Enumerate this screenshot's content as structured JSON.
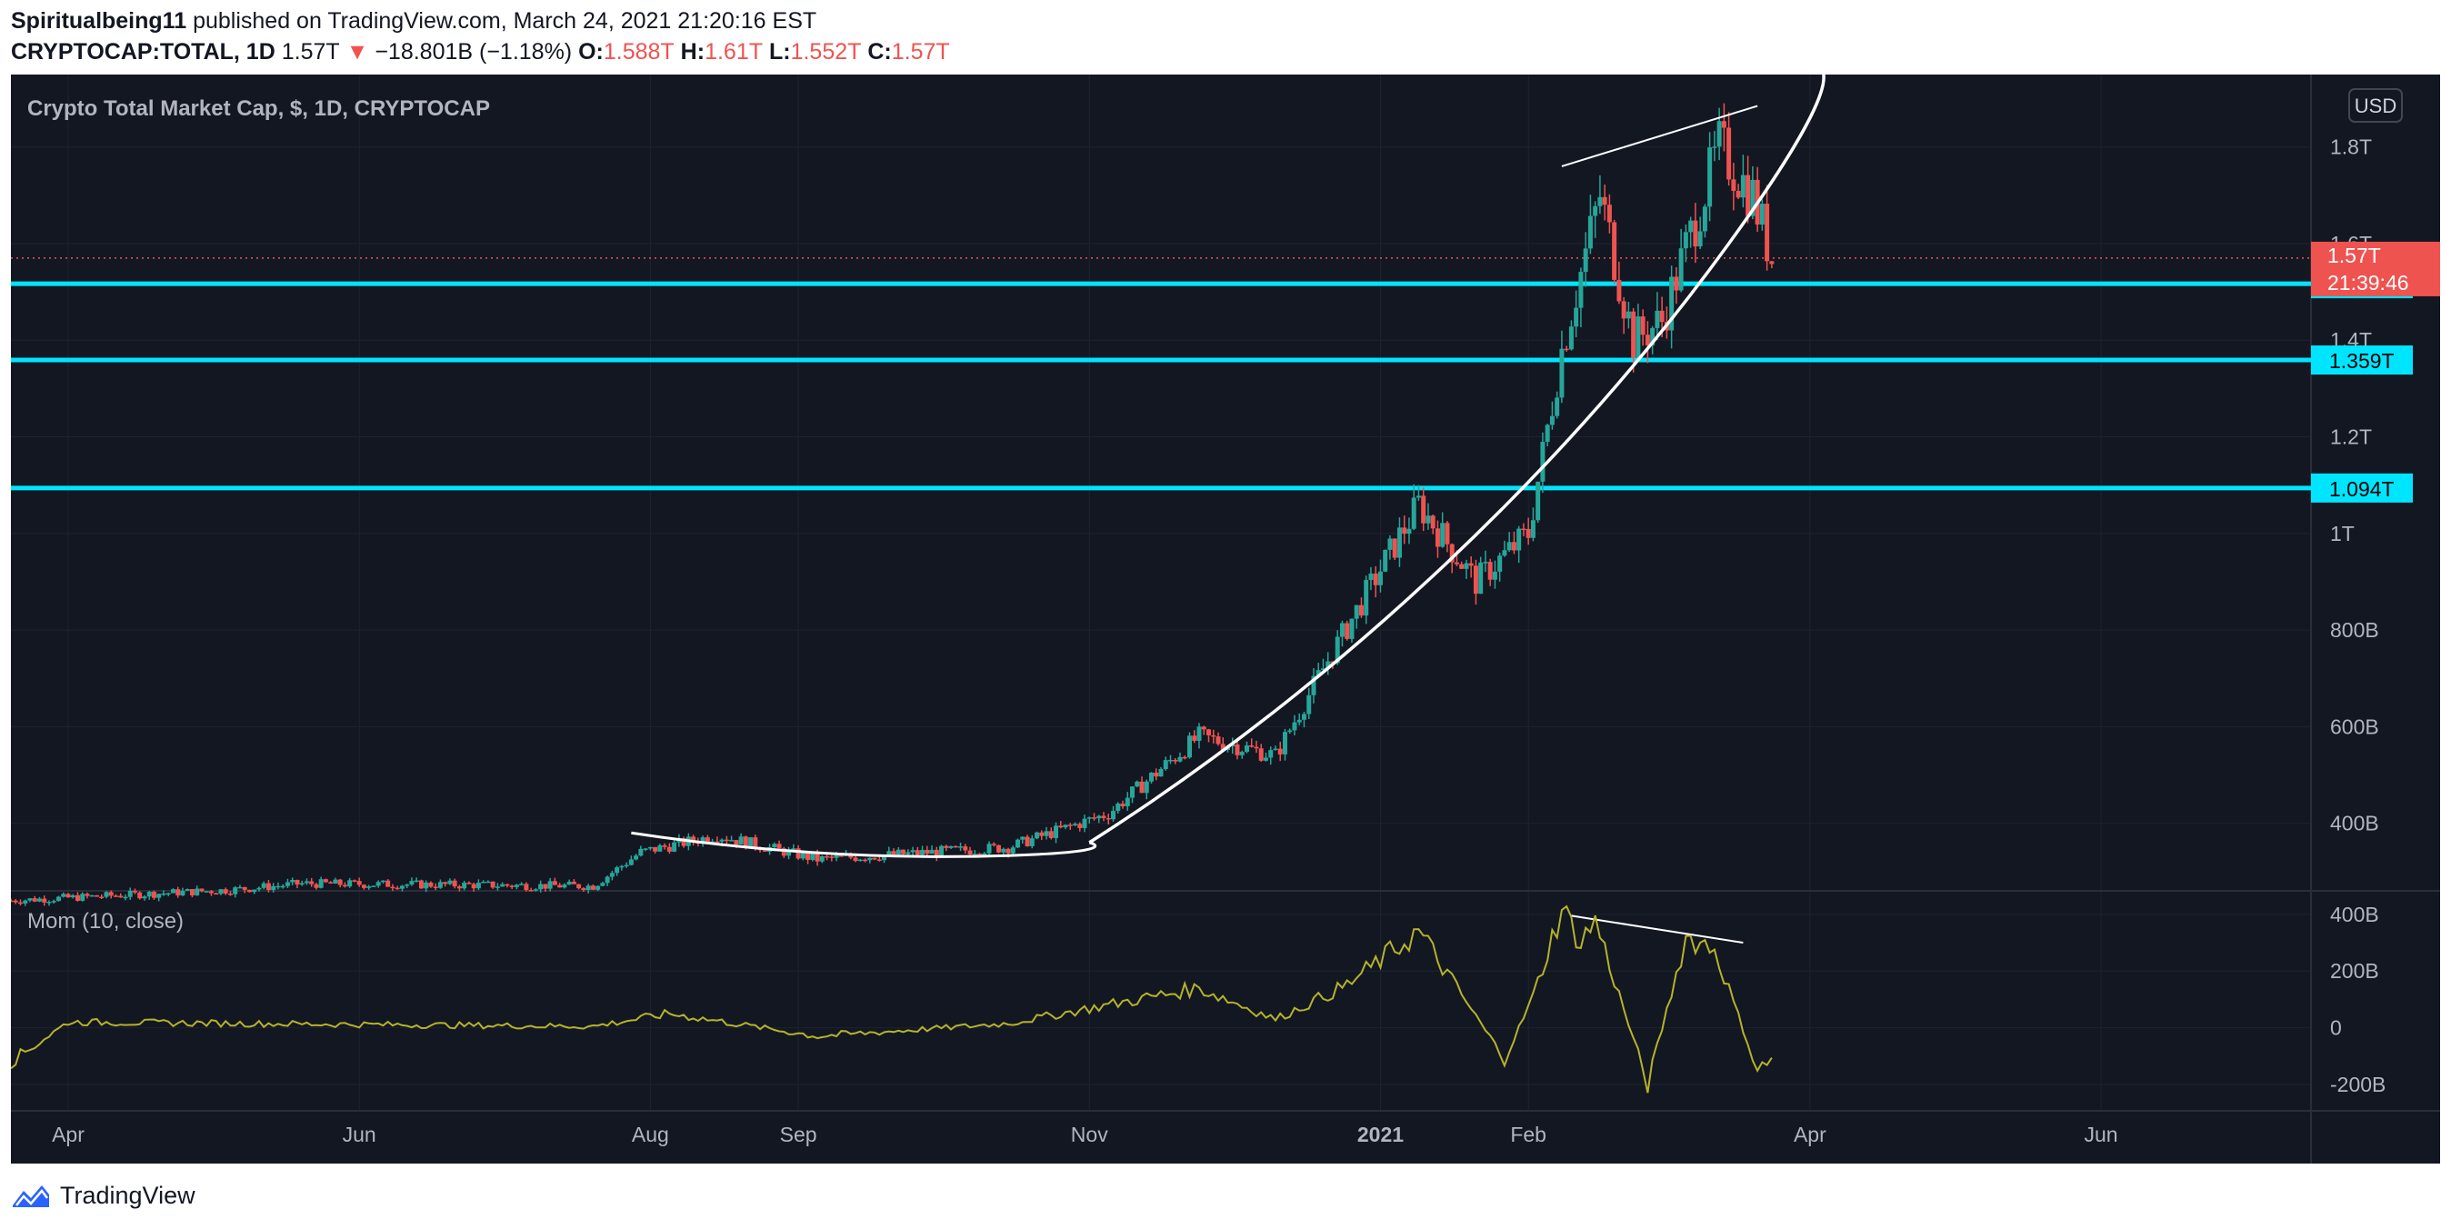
{
  "header": {
    "publisher": "Spiritualbeing11",
    "published_text": "published on TradingView.com, March 24, 2021 21:20:16 EST",
    "symbol": "CRYPTOCAP:TOTAL, 1D",
    "last": "1.57T",
    "change_arrow": "▼",
    "change": "−18.801B (−1.18%)",
    "o_label": "O:",
    "o_value": "1.588T",
    "h_label": "H:",
    "h_value": "1.61T",
    "l_label": "L:",
    "l_value": "1.552T",
    "c_label": "C:",
    "c_value": "1.57T"
  },
  "chart": {
    "series_title": "Crypto Total Market Cap, $, 1D, CRYPTOCAP",
    "currency_button": "USD",
    "indicator_title": "Mom (10, close)",
    "price_badge": "1.57T",
    "countdown": "21:39:46",
    "footer_brand": "TradingView"
  },
  "colors": {
    "background": "#131722",
    "grid": "#1f2330",
    "up": "#26a69a",
    "down": "#ef5350",
    "level_line": "#00e5ff",
    "momentum": "#b5b32a",
    "text": "#b2b5be",
    "trendline": "#ffffff"
  },
  "chart_data": [
    {
      "type": "candlestick",
      "title": "Crypto Total Market Cap, $, 1D, CRYPTOCAP",
      "x_ticks": [
        "Apr",
        "Jun",
        "Aug",
        "Sep",
        "Nov",
        "2021",
        "Feb",
        "Apr",
        "Jun"
      ],
      "y_ticks": [
        "400B",
        "600B",
        "800B",
        "1T",
        "1.2T",
        "1.4T",
        "1.6T",
        "1.8T"
      ],
      "y_tick_values": [
        400,
        600,
        800,
        1000,
        1200,
        1400,
        1600,
        1800
      ],
      "unit": "B",
      "ylim": [
        260,
        1950
      ],
      "x_range": [
        "2020-03-20",
        "2021-07-15"
      ],
      "scale": "linear",
      "horizontal_levels": [
        {
          "label": "1.517T",
          "value": 1517
        },
        {
          "label": "1.359T",
          "value": 1359
        },
        {
          "label": "1.094T",
          "value": 1094
        }
      ],
      "last_price": {
        "label": "1.57T",
        "value": 1570
      },
      "anchor_points": [
        {
          "date": "2020-03-20",
          "close": 240
        },
        {
          "date": "2020-05-05",
          "close": 262
        },
        {
          "date": "2020-05-20",
          "close": 275
        },
        {
          "date": "2020-07-20",
          "close": 270
        },
        {
          "date": "2020-07-30",
          "close": 340
        },
        {
          "date": "2020-08-15",
          "close": 375
        },
        {
          "date": "2020-09-05",
          "close": 325
        },
        {
          "date": "2020-10-15",
          "close": 350
        },
        {
          "date": "2020-11-05",
          "close": 420
        },
        {
          "date": "2020-11-24",
          "close": 580
        },
        {
          "date": "2020-12-10",
          "close": 540
        },
        {
          "date": "2020-12-20",
          "close": 720
        },
        {
          "date": "2021-01-03",
          "close": 960
        },
        {
          "date": "2021-01-09",
          "close": 1060
        },
        {
          "date": "2021-01-21",
          "close": 900
        },
        {
          "date": "2021-02-01",
          "close": 1000
        },
        {
          "date": "2021-02-08",
          "close": 1380
        },
        {
          "date": "2021-02-16",
          "close": 1700
        },
        {
          "date": "2021-02-23",
          "close": 1400
        },
        {
          "date": "2021-03-01",
          "close": 1440
        },
        {
          "date": "2021-03-13",
          "close": 1800
        },
        {
          "date": "2021-03-20",
          "close": 1700
        },
        {
          "date": "2021-03-24",
          "close": 1570
        }
      ]
    },
    {
      "type": "line",
      "title": "Mom (10, close)",
      "y_ticks": [
        "-200B",
        "0",
        "200B",
        "400B"
      ],
      "y_tick_values": [
        -200,
        0,
        200,
        400
      ],
      "unit": "B",
      "ylim": [
        -280,
        470
      ],
      "series": [
        {
          "points": [
            {
              "date": "2020-03-20",
              "mom": -120
            },
            {
              "date": "2020-04-01",
              "mom": 20
            },
            {
              "date": "2020-07-20",
              "mom": 5
            },
            {
              "date": "2020-08-05",
              "mom": 50
            },
            {
              "date": "2020-09-05",
              "mom": -30
            },
            {
              "date": "2020-10-15",
              "mom": 15
            },
            {
              "date": "2020-11-24",
              "mom": 140
            },
            {
              "date": "2020-12-10",
              "mom": 30
            },
            {
              "date": "2020-12-25",
              "mom": 150
            },
            {
              "date": "2021-01-09",
              "mom": 340
            },
            {
              "date": "2021-01-15",
              "mom": 190
            },
            {
              "date": "2021-01-27",
              "mom": -110
            },
            {
              "date": "2021-02-02",
              "mom": 110
            },
            {
              "date": "2021-02-08",
              "mom": 420
            },
            {
              "date": "2021-02-12",
              "mom": 300
            },
            {
              "date": "2021-02-15",
              "mom": 380
            },
            {
              "date": "2021-02-26",
              "mom": -200
            },
            {
              "date": "2021-03-06",
              "mom": 320
            },
            {
              "date": "2021-03-12",
              "mom": 280
            },
            {
              "date": "2021-03-21",
              "mom": -150
            },
            {
              "date": "2021-03-24",
              "mom": -110
            }
          ]
        }
      ]
    }
  ]
}
